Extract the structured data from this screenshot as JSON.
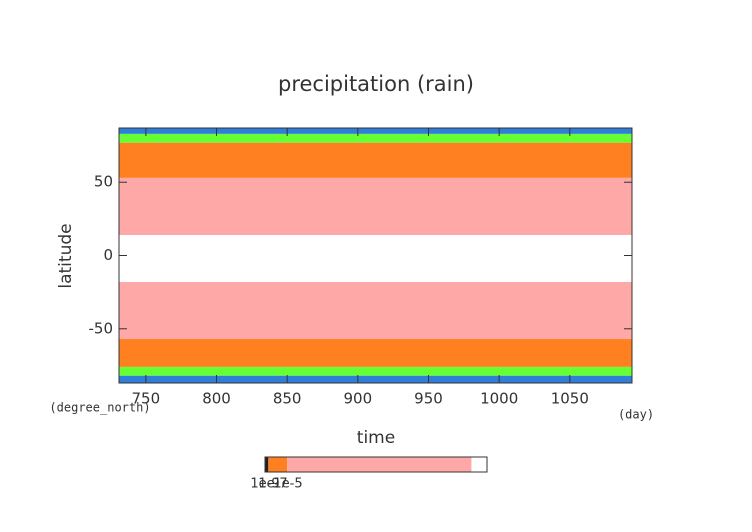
{
  "chart_data": {
    "type": "filled_contour",
    "title": "precipitation (rain)",
    "x_label": "time",
    "x_units": "(day)",
    "y_label": "latitude",
    "y_units": "(degree_north)",
    "xlim": [
      731,
      1094
    ],
    "xticks": [
      750,
      800,
      850,
      900,
      950,
      1000,
      1050
    ],
    "ylim": [
      -87,
      87
    ],
    "yticks": [
      -50,
      0,
      50
    ],
    "lat_edges": [
      -87,
      -82,
      -76,
      -57,
      -18,
      14,
      53,
      77,
      83,
      87
    ],
    "band_colors": [
      "#2f7fd8",
      "#66ff33",
      "#ff8020",
      "#ffa8a8",
      "#ffffff",
      "#ffa8a8",
      "#ff8020",
      "#66ff33",
      "#2f7fd8"
    ],
    "colorbar_labels": [
      "1e-9",
      "1e-7",
      "1e-5"
    ]
  }
}
